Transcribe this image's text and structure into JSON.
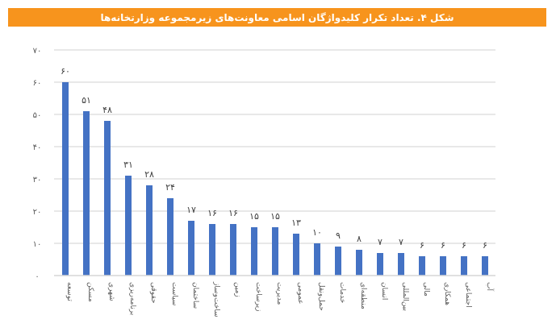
{
  "figure": {
    "title": "شکل ۴. تعداد تکرار کلیدواژگان اسامی معاونت‌های زیرمجموعه وزارتخانه‌ها",
    "header_color": "#F7941D",
    "bar_color": "#4472C4",
    "grid_color": "#D9D9D9"
  },
  "chart_data": {
    "type": "bar",
    "title": "شکل ۴. تعداد تکرار کلیدواژگان اسامی معاونت‌های زیرمجموعه وزارتخانه‌ها",
    "xlabel": "",
    "ylabel": "",
    "ylim": [
      0,
      70
    ],
    "yticks": [
      0,
      10,
      20,
      30,
      40,
      50,
      60,
      70
    ],
    "ytick_labels": [
      "۰",
      "۱۰",
      "۲۰",
      "۳۰",
      "۴۰",
      "۵۰",
      "۶۰",
      "۷۰"
    ],
    "grid": true,
    "legend": "none",
    "categories": [
      "توسعه",
      "مسکن",
      "شهری",
      "برنامه‌ریزی",
      "حقوقی",
      "سیاست",
      "ساختمان",
      "ساخت‌وساز",
      "زمین",
      "زیرساخت",
      "مدیریت",
      "عمومی",
      "حمل‌ونقل",
      "خدمات",
      "منطقه‌ای",
      "انسان",
      "بین‌المللی",
      "مالی",
      "همکاری",
      "اجتماعی",
      "آب"
    ],
    "values": [
      60,
      51,
      48,
      31,
      28,
      24,
      17,
      16,
      16,
      15,
      15,
      13,
      10,
      9,
      8,
      7,
      7,
      6,
      6,
      6,
      6
    ],
    "value_labels": [
      "۶۰",
      "۵۱",
      "۴۸",
      "۳۱",
      "۲۸",
      "۲۴",
      "۱۷",
      "۱۶",
      "۱۶",
      "۱۵",
      "۱۵",
      "۱۳",
      "۱۰",
      "۹",
      "۸",
      "۷",
      "۷",
      "۶",
      "۶",
      "۶",
      "۶"
    ]
  }
}
